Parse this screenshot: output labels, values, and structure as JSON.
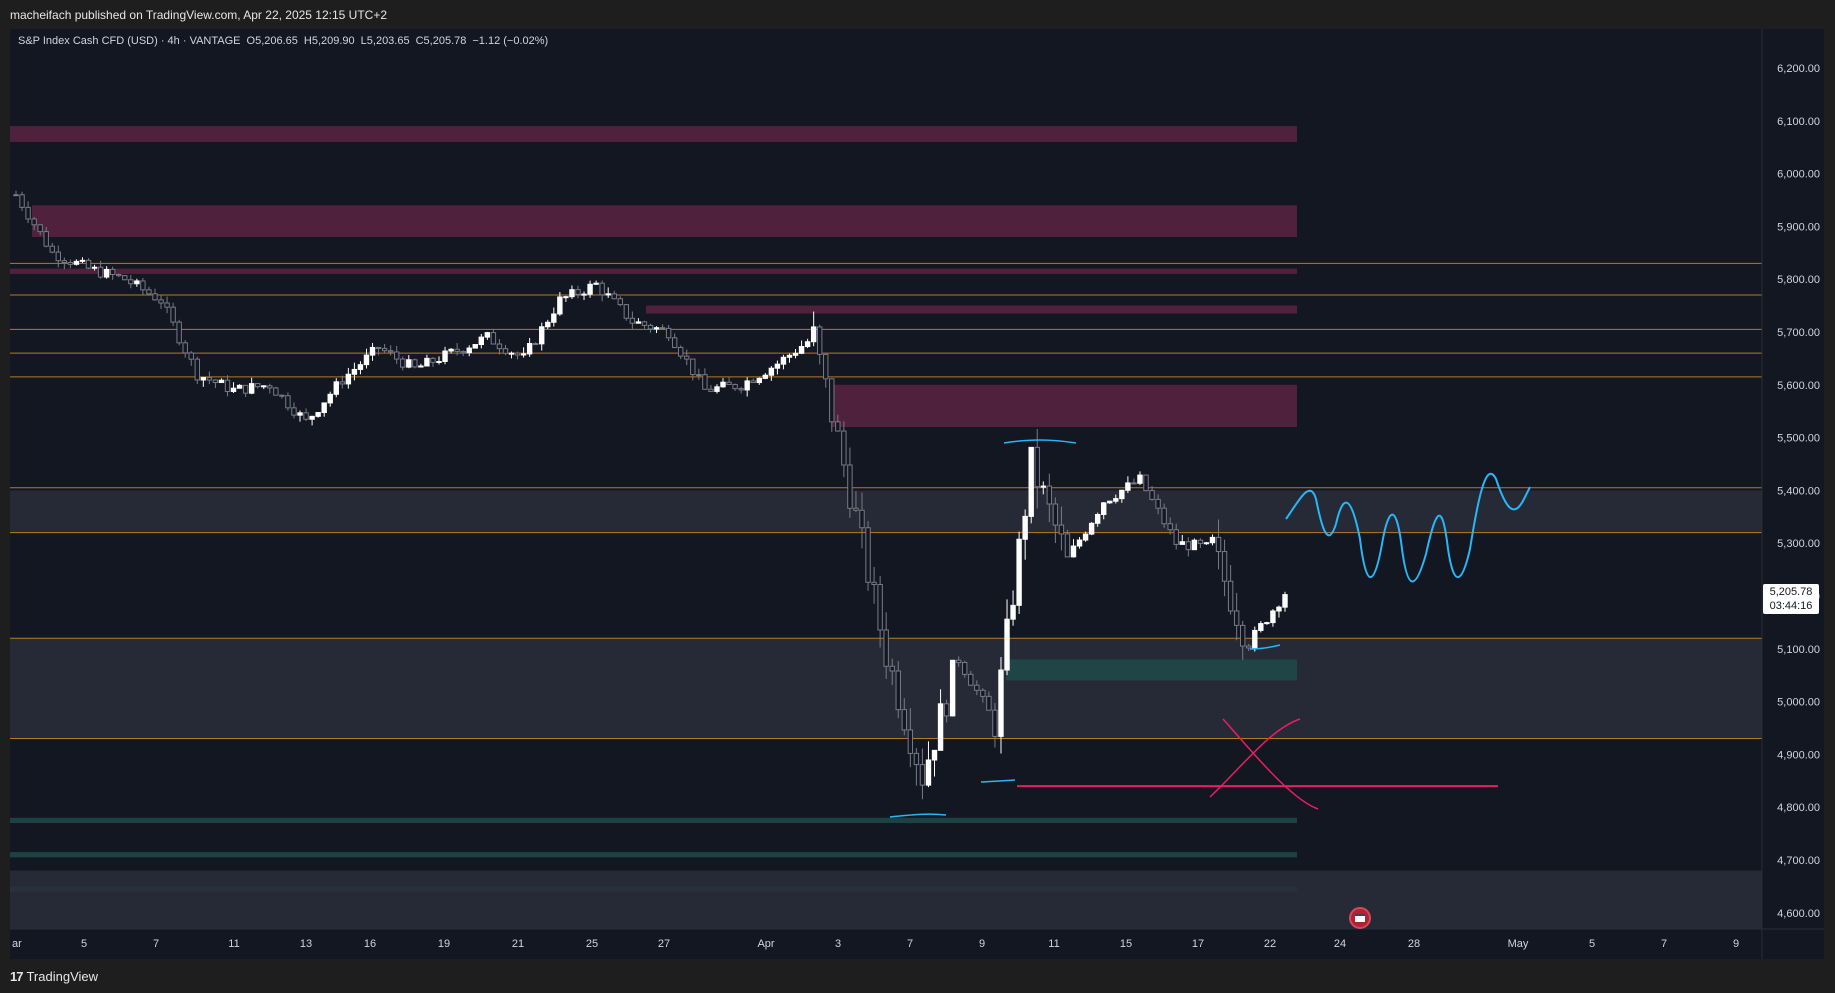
{
  "header": {
    "published": "macheifach published on TradingView.com, Apr 22, 2025 12:15 UTC+2"
  },
  "legend": {
    "symbol": "S&P Index Cash CFD (USD) · 4h · VANTAGE",
    "open": "O5,206.65",
    "high": "H5,209.90",
    "low": "L5,203.65",
    "close": "C5,205.78",
    "change": "−1.12 (−0.02%)"
  },
  "price_tag": {
    "price": "5,205.78",
    "countdown": "03:44:16"
  },
  "footer": {
    "logo_text": "TradingView"
  },
  "colors": {
    "background": "#131722",
    "up_candle": "#ffffff",
    "down_candle": "#787b86",
    "resistance_zone": "#5c2342",
    "support_zone": "#1e4a4a",
    "neutral_zone": "#2a2e39",
    "level_line": "#b87a1e",
    "projection_line": "#29b6f6",
    "invalidation_line": "#e91e63"
  },
  "chart_data": {
    "type": "candlestick",
    "timeframe": "4h",
    "y_axis": {
      "min": 4570,
      "max": 6250,
      "ticks": [
        4600,
        4700,
        4800,
        4900,
        5000,
        5100,
        5200,
        5300,
        5400,
        5500,
        5600,
        5700,
        5800,
        5900,
        6000,
        6100,
        6200
      ],
      "tick_labels": [
        "4,600.00",
        "4,700.00",
        "4,800.00",
        "4,900.00",
        "5,000.00",
        "5,100.00",
        "5,200.00",
        "5,300.00",
        "5,400.00",
        "5,500.00",
        "5,600.00",
        "5,700.00",
        "5,800.00",
        "5,900.00",
        "6,000.00",
        "6,100.00",
        "6,200.00"
      ]
    },
    "x_axis": {
      "labels": [
        "ar",
        "5",
        "7",
        "11",
        "13",
        "16",
        "19",
        "21",
        "25",
        "27",
        "Apr",
        "3",
        "7",
        "9",
        "11",
        "15",
        "17",
        "22",
        "24",
        "28",
        "May",
        "5",
        "7",
        "9"
      ]
    },
    "candle_anchors": [
      {
        "day": "Mar 3",
        "close": 5960
      },
      {
        "day": "Mar 4",
        "close": 5850
      },
      {
        "day": "Mar 5",
        "close": 5820
      },
      {
        "day": "Mar 6",
        "close": 5800
      },
      {
        "day": "Mar 7",
        "close": 5760
      },
      {
        "day": "Mar 10",
        "close": 5620
      },
      {
        "day": "Mar 11",
        "close": 5590
      },
      {
        "day": "Mar 12",
        "close": 5600
      },
      {
        "day": "Mar 13",
        "close": 5530
      },
      {
        "day": "Mar 14",
        "close": 5610
      },
      {
        "day": "Mar 17",
        "close": 5670
      },
      {
        "day": "Mar 18",
        "close": 5630
      },
      {
        "day": "Mar 19",
        "close": 5660
      },
      {
        "day": "Mar 20",
        "close": 5690
      },
      {
        "day": "Mar 21",
        "close": 5650
      },
      {
        "day": "Mar 24",
        "close": 5760
      },
      {
        "day": "Mar 25",
        "close": 5790
      },
      {
        "day": "Mar 26",
        "close": 5720
      },
      {
        "day": "Mar 27",
        "close": 5700
      },
      {
        "day": "Mar 28",
        "close": 5590
      },
      {
        "day": "Mar 31",
        "close": 5600
      },
      {
        "day": "Apr 1",
        "close": 5640
      },
      {
        "day": "Apr 2",
        "close": 5690
      },
      {
        "day": "Apr 3",
        "close": 5400
      },
      {
        "day": "Apr 4",
        "close": 5090
      },
      {
        "day": "Apr 7",
        "close": 4860
      },
      {
        "day": "Apr 8",
        "close": 5080
      },
      {
        "day": "Apr 9",
        "close": 4960
      },
      {
        "day": "Apr 10",
        "close": 5450
      },
      {
        "day": "Apr 11",
        "close": 5270
      },
      {
        "day": "Apr 14",
        "close": 5380
      },
      {
        "day": "Apr 15",
        "close": 5420
      },
      {
        "day": "Apr 16",
        "close": 5300
      },
      {
        "day": "Apr 17",
        "close": 5290
      },
      {
        "day": "Apr 21",
        "close": 5110
      },
      {
        "day": "Apr 22",
        "close": 5205.78
      }
    ],
    "zones": [
      {
        "kind": "resistance",
        "from": 6060,
        "to": 6090
      },
      {
        "kind": "resistance",
        "from": 5880,
        "to": 5940
      },
      {
        "kind": "resistance",
        "from": 5810,
        "to": 5820
      },
      {
        "kind": "resistance",
        "from": 5735,
        "to": 5750
      },
      {
        "kind": "resistance",
        "from": 5520,
        "to": 5600
      },
      {
        "kind": "neutral",
        "from": 5320,
        "to": 5400
      },
      {
        "kind": "neutral",
        "from": 4930,
        "to": 5120
      },
      {
        "kind": "support",
        "from": 5040,
        "to": 5080
      },
      {
        "kind": "support",
        "from": 4770,
        "to": 4780
      },
      {
        "kind": "support",
        "from": 4705,
        "to": 4715
      },
      {
        "kind": "support",
        "from": 4640,
        "to": 4650
      },
      {
        "kind": "neutral",
        "from": 4570,
        "to": 4680
      }
    ],
    "levels": [
      5830,
      5770,
      5705,
      5660,
      5615,
      5405,
      5320,
      5120,
      4930
    ],
    "invalidation_level": 4840,
    "grid": false
  }
}
